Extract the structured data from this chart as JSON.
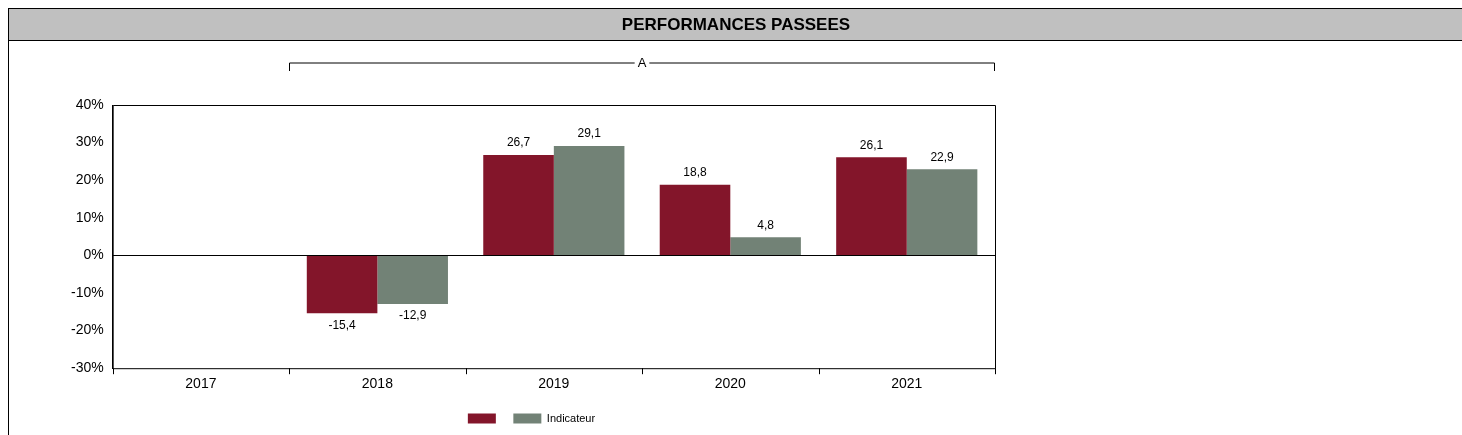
{
  "chart_data": {
    "type": "bar",
    "title": "PERFORMANCES PASSEES",
    "categories": [
      "2017",
      "2018",
      "2019",
      "2020",
      "2021"
    ],
    "series": [
      {
        "color": "#83152a",
        "values": [
          null,
          -15.4,
          26.7,
          18.8,
          26.1
        ],
        "value_labels": [
          null,
          "-15,4",
          "26,7",
          "18,8",
          "26,1"
        ]
      },
      {
        "name": "Indicateur",
        "color": "#728276",
        "values": [
          null,
          -12.9,
          29.1,
          4.8,
          22.9
        ],
        "value_labels": [
          null,
          "-12,9",
          "29,1",
          "4,8",
          "22,9"
        ]
      }
    ],
    "ylim": [
      -30,
      40
    ],
    "yticks": [
      {
        "value": -30,
        "label": "-30%"
      },
      {
        "value": -20,
        "label": "-20%"
      },
      {
        "value": -10,
        "label": "-10%"
      },
      {
        "value": 0,
        "label": "0%"
      },
      {
        "value": 10,
        "label": "10%"
      },
      {
        "value": 20,
        "label": "20%"
      },
      {
        "value": 30,
        "label": "30%"
      },
      {
        "value": 40,
        "label": "40%"
      }
    ],
    "grid": false,
    "legend": "bottom",
    "ref_lines": [
      {
        "axis": "y",
        "value": 0,
        "color": "#000000"
      }
    ],
    "annotations": [
      "A"
    ]
  }
}
